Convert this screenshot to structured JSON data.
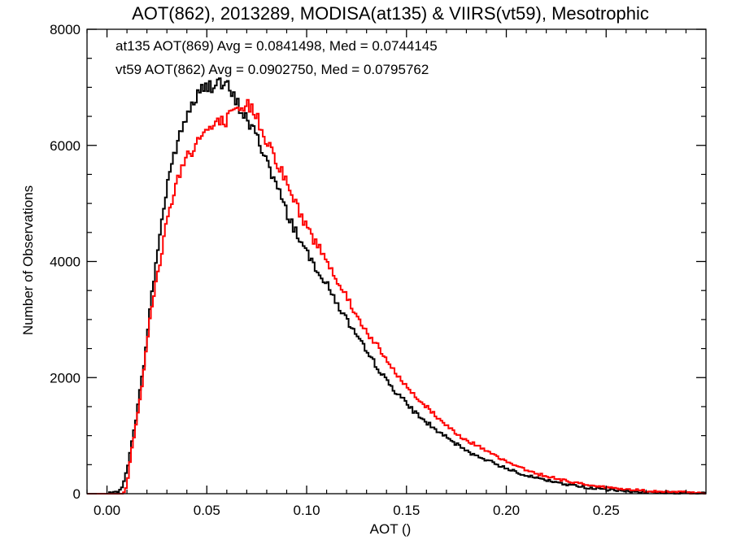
{
  "chart_data": {
    "type": "line",
    "title": "AOT(862), 2013289, MODISA(at135) & VIIRS(vt59), Mesotrophic",
    "xlabel": "AOT ()",
    "ylabel": "Number of Observations",
    "xlim": [
      -0.01,
      0.3
    ],
    "ylim": [
      0,
      8000
    ],
    "xticks": [
      0.0,
      0.05,
      0.1,
      0.15,
      0.2,
      0.25
    ],
    "xtick_labels": [
      "0.00",
      "0.05",
      "0.10",
      "0.15",
      "0.20",
      "0.25"
    ],
    "yticks": [
      0,
      2000,
      4000,
      6000,
      8000
    ],
    "ytick_labels": [
      "0",
      "2000",
      "4000",
      "6000",
      "8000"
    ],
    "grid": false,
    "legend_position": "top-left",
    "annotations": [
      {
        "text": "at135 AOT(869) Avg = 0.0841498, Med = 0.0744145",
        "color": "#000000"
      },
      {
        "text": "vt59 AOT(862) Avg = 0.0902750, Med = 0.0795762",
        "color": "#ff0000"
      }
    ],
    "series": [
      {
        "color": "#000000",
        "x": [
          -0.01,
          0.0,
          0.005,
          0.008,
          0.01,
          0.012,
          0.015,
          0.018,
          0.02,
          0.022,
          0.025,
          0.028,
          0.03,
          0.032,
          0.035,
          0.038,
          0.04,
          0.043,
          0.045,
          0.048,
          0.05,
          0.052,
          0.055,
          0.058,
          0.06,
          0.063,
          0.065,
          0.068,
          0.07,
          0.075,
          0.08,
          0.085,
          0.09,
          0.095,
          0.1,
          0.105,
          0.11,
          0.115,
          0.12,
          0.125,
          0.13,
          0.135,
          0.14,
          0.145,
          0.15,
          0.155,
          0.16,
          0.165,
          0.17,
          0.175,
          0.18,
          0.19,
          0.2,
          0.21,
          0.22,
          0.23,
          0.24,
          0.25,
          0.26,
          0.27,
          0.28,
          0.29,
          0.3
        ],
        "y": [
          0,
          0,
          20,
          150,
          400,
          800,
          1400,
          2100,
          2700,
          3300,
          4100,
          4800,
          5300,
          5650,
          6000,
          6300,
          6550,
          6700,
          6850,
          6950,
          7000,
          7050,
          7100,
          7050,
          7000,
          6850,
          6700,
          6600,
          6450,
          6150,
          5750,
          5300,
          4850,
          4500,
          4150,
          3900,
          3600,
          3300,
          3000,
          2700,
          2450,
          2200,
          1950,
          1750,
          1550,
          1380,
          1230,
          1100,
          960,
          850,
          740,
          580,
          440,
          320,
          230,
          160,
          110,
          70,
          45,
          28,
          18,
          10,
          5
        ]
      },
      {
        "color": "#ff0000",
        "x": [
          -0.01,
          0.005,
          0.008,
          0.01,
          0.012,
          0.015,
          0.018,
          0.02,
          0.022,
          0.025,
          0.028,
          0.03,
          0.032,
          0.035,
          0.038,
          0.04,
          0.043,
          0.045,
          0.048,
          0.05,
          0.052,
          0.055,
          0.058,
          0.06,
          0.063,
          0.065,
          0.068,
          0.07,
          0.072,
          0.075,
          0.08,
          0.085,
          0.09,
          0.095,
          0.1,
          0.105,
          0.11,
          0.115,
          0.12,
          0.125,
          0.13,
          0.135,
          0.14,
          0.145,
          0.15,
          0.155,
          0.16,
          0.165,
          0.17,
          0.175,
          0.18,
          0.19,
          0.2,
          0.21,
          0.22,
          0.23,
          0.24,
          0.25,
          0.26,
          0.27,
          0.28,
          0.29,
          0.3
        ],
        "y": [
          0,
          0,
          0,
          120,
          700,
          1300,
          2000,
          2600,
          3100,
          3700,
          4300,
          4700,
          5000,
          5400,
          5650,
          5850,
          5950,
          6050,
          6200,
          6250,
          6300,
          6350,
          6400,
          6450,
          6500,
          6550,
          6600,
          6650,
          6700,
          6500,
          6100,
          5750,
          5350,
          4950,
          4600,
          4300,
          4050,
          3700,
          3400,
          3050,
          2800,
          2550,
          2300,
          2050,
          1850,
          1650,
          1500,
          1330,
          1180,
          1050,
          930,
          730,
          550,
          410,
          300,
          220,
          160,
          110,
          75,
          50,
          32,
          20,
          5
        ]
      }
    ]
  }
}
